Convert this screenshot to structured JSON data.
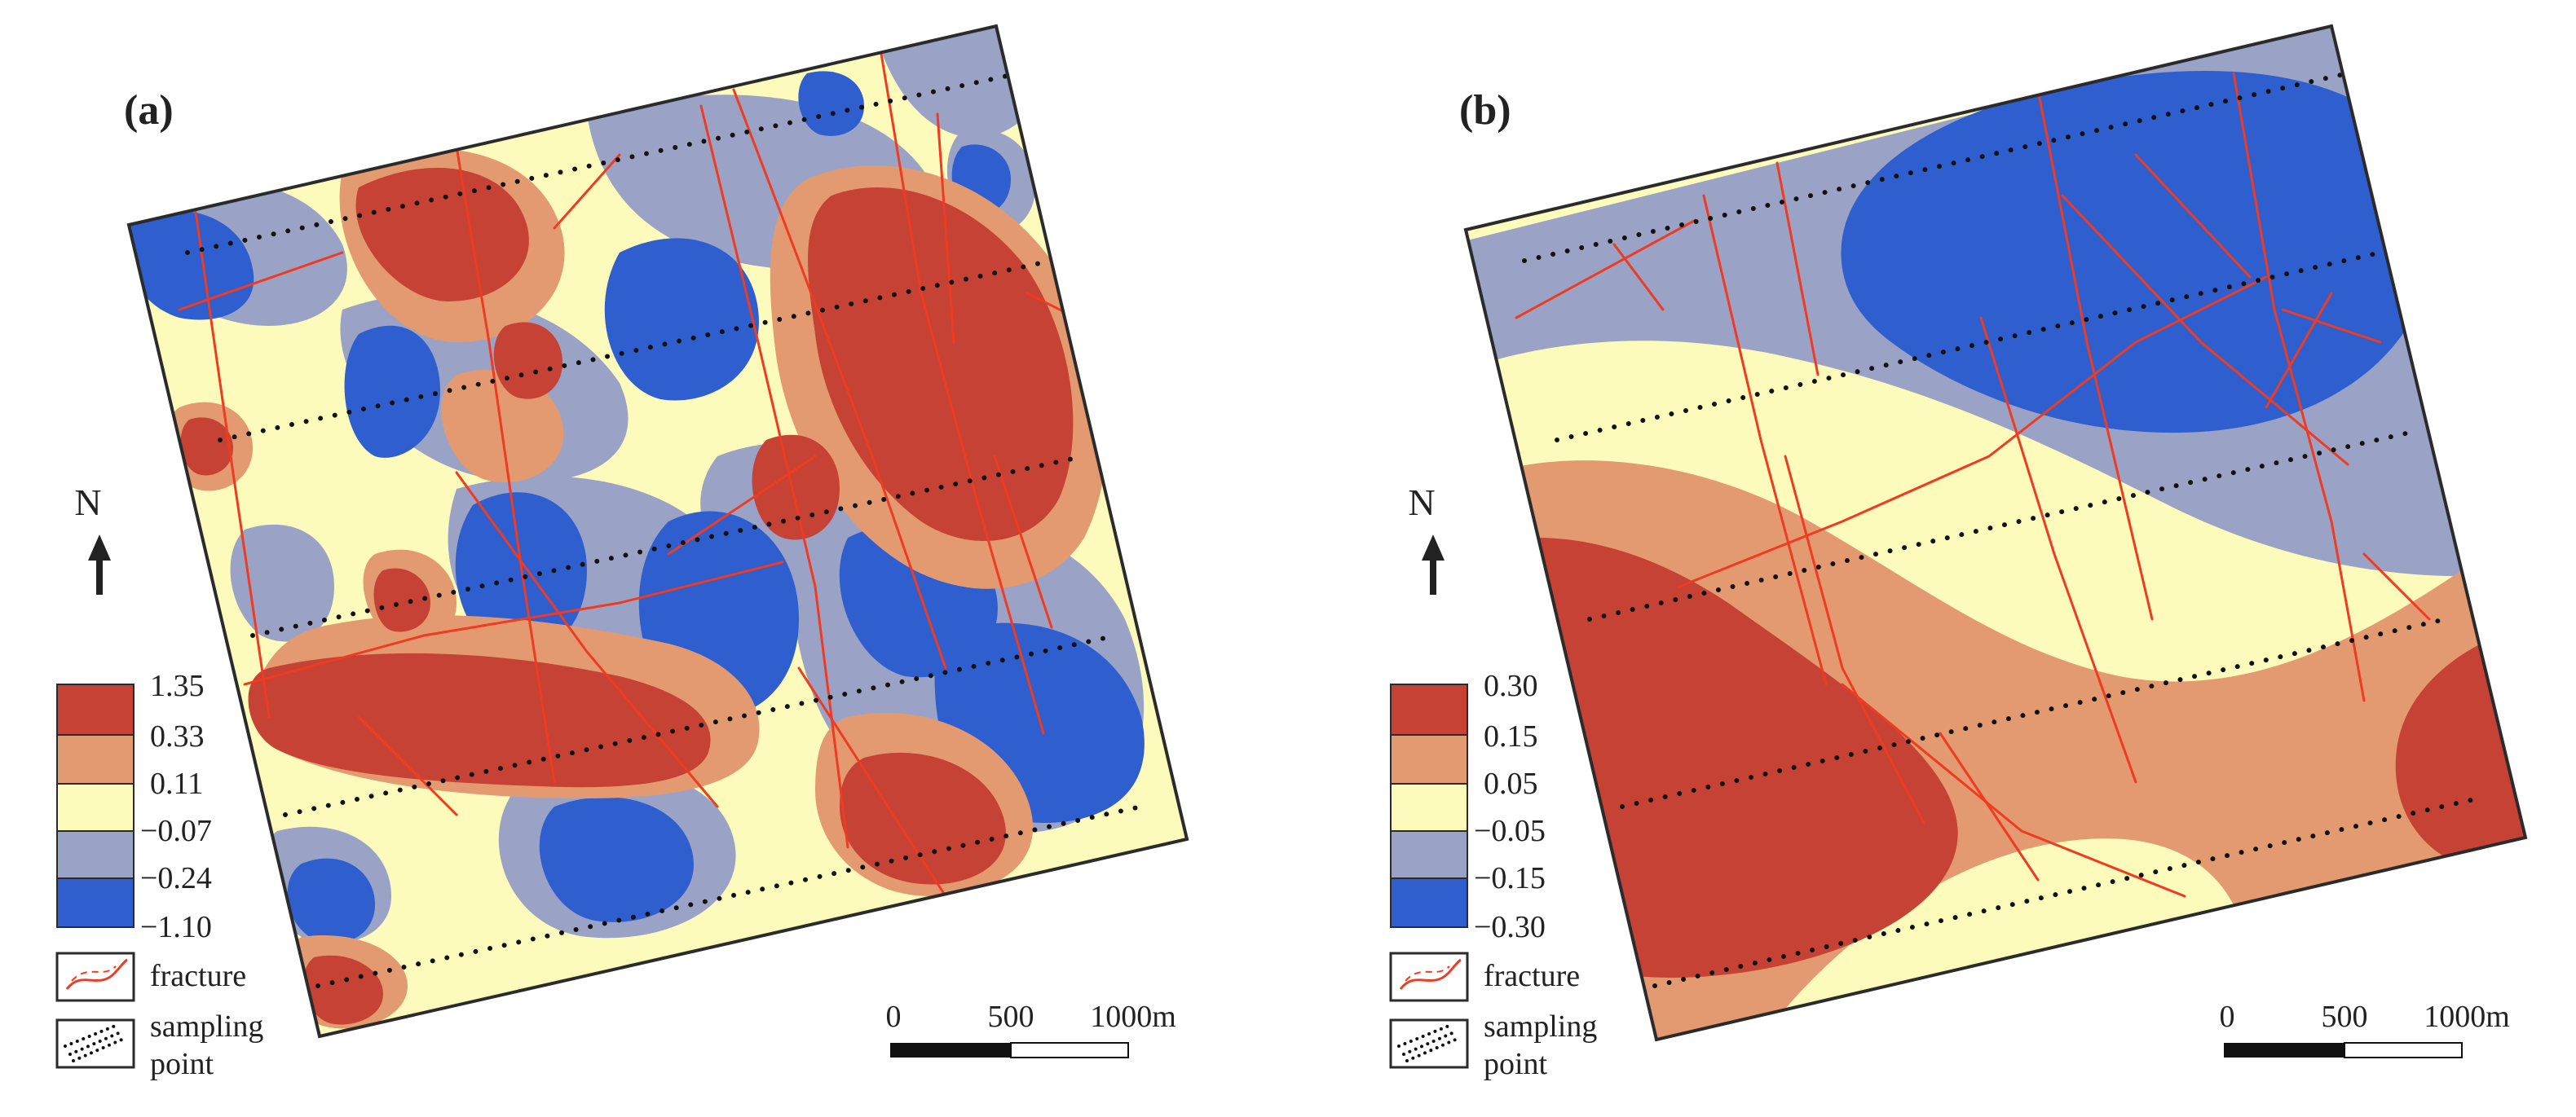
{
  "palette": {
    "dark_red": "#c64234",
    "light_red": "#e49a70",
    "yellow": "#fdfbbb",
    "grey_blue": "#9aa3c6",
    "blue": "#2f5fcf",
    "fracture": "#ee3b22",
    "sample": "#111111",
    "frame": "#2b2b2b"
  },
  "north": {
    "label": "N"
  },
  "panels": [
    {
      "id": "a",
      "label": "(a)",
      "legend": {
        "classes": [
          {
            "label": "1.35",
            "color": "#c64234"
          },
          {
            "label": "0.33",
            "color": "#e49a70"
          },
          {
            "label": "0.11",
            "color": "#fdfbbb"
          },
          {
            "label": "−0.07",
            "color": "#9aa3c6"
          },
          {
            "label": "−0.24",
            "color": "#2f5fcf"
          },
          {
            "label": "−1.10",
            "color": null
          }
        ],
        "fracture_label": "fracture",
        "sampling_label_line1": "sampling",
        "sampling_label_line2": "point"
      },
      "scale": {
        "labels": [
          "0",
          "500",
          "1000m"
        ]
      }
    },
    {
      "id": "b",
      "label": "(b)",
      "legend": {
        "classes": [
          {
            "label": "0.30",
            "color": "#c64234"
          },
          {
            "label": "0.15",
            "color": "#e49a70"
          },
          {
            "label": "0.05",
            "color": "#fdfbbb"
          },
          {
            "label": "−0.05",
            "color": "#9aa3c6"
          },
          {
            "label": "−0.15",
            "color": "#2f5fcf"
          },
          {
            "label": "−0.30",
            "color": null
          }
        ],
        "fracture_label": "fracture",
        "sampling_label_line1": "sampling",
        "sampling_label_line2": "point"
      },
      "scale": {
        "labels": [
          "0",
          "500",
          "1000m"
        ]
      }
    }
  ]
}
